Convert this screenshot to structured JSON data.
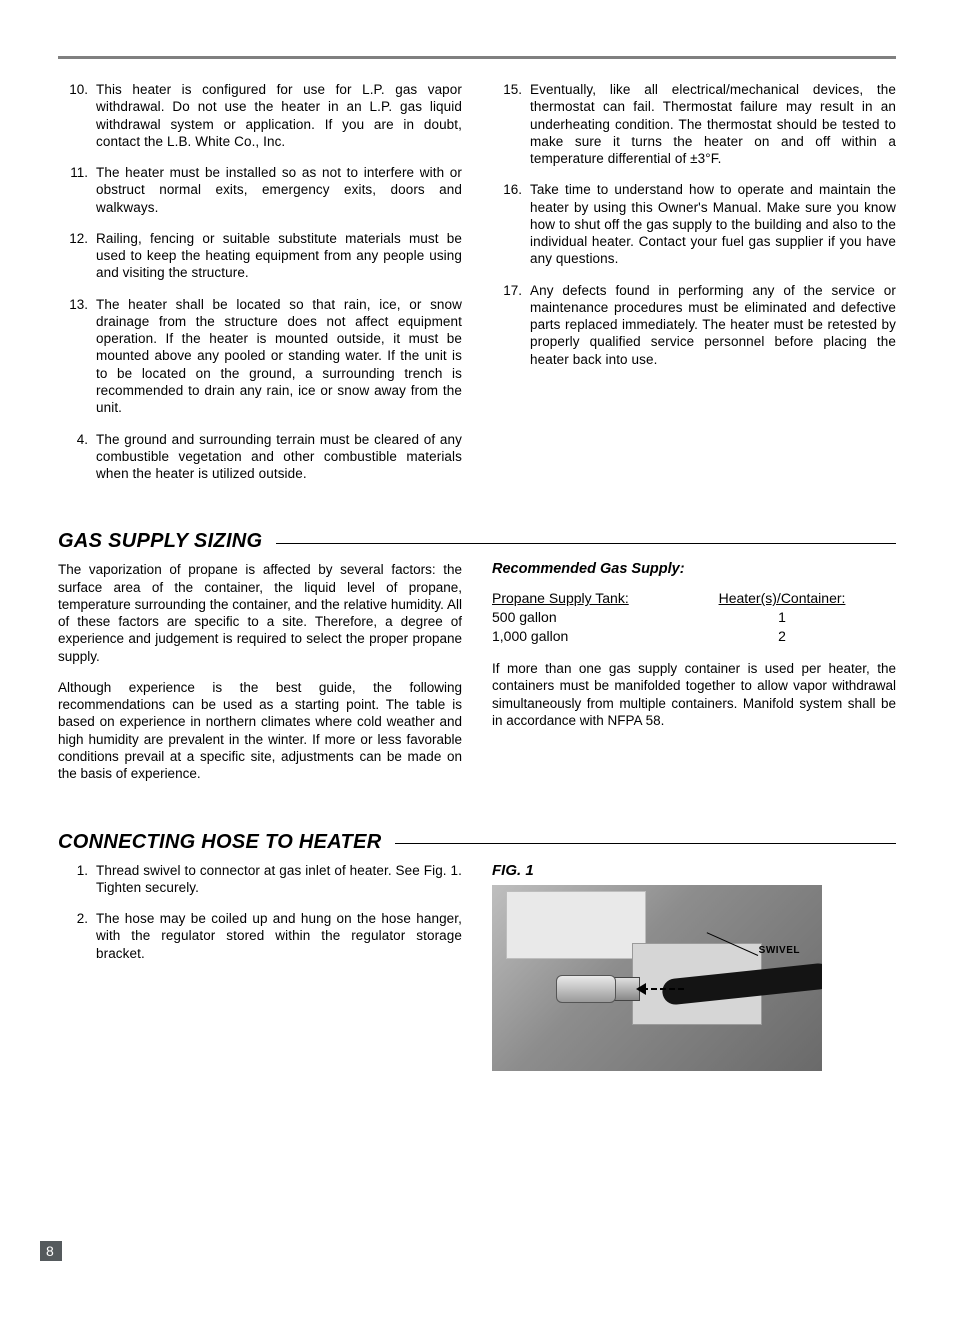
{
  "safety_left": [
    {
      "n": "10.",
      "t": "This heater is configured for use for L.P. gas vapor withdrawal.  Do not use the heater in an L.P. gas liquid withdrawal system or application.  If you are in doubt, contact the L.B. White Co., Inc."
    },
    {
      "n": "11.",
      "t": "The heater must be installed so as not to interfere with or obstruct normal exits, emergency exits, doors and walkways."
    },
    {
      "n": "12.",
      "t": "Railing, fencing or suitable substitute materials must be used to keep the heating equipment from any people using and visiting the structure."
    },
    {
      "n": "13.",
      "t": "The heater shall be located so that rain, ice, or snow drainage from the structure does not affect equipment operation.  If the heater is mounted outside, it must be mounted above any pooled or standing water.  If the unit is to be located on the ground, a surrounding trench is recommended to drain any rain, ice or snow away from the unit."
    },
    {
      "n": "4.",
      "t": "The ground and surrounding terrain must be cleared of any combustible vegetation and other combustible materials when the heater is utilized outside."
    }
  ],
  "safety_right": [
    {
      "n": "15.",
      "t": "Eventually, like all electrical/mechanical devices, the thermostat can fail.  Thermostat failure may result in an underheating condition.  The thermostat should be tested to make sure it turns the heater on and off within a temperature differential of ±3°F."
    },
    {
      "n": "16.",
      "t": "Take time to understand how to operate and maintain the heater by using this Owner's Manual.  Make sure you know how to shut off the gas supply to the building and also to the individual heater.  Contact your fuel gas supplier if you have any questions."
    },
    {
      "n": "17.",
      "t": "Any defects found in performing any of the service or maintenance procedures must be eliminated and defective parts replaced immediately.  The heater must be retested by properly qualified service personnel before placing the heater back into use."
    }
  ],
  "gas": {
    "heading": "GAS SUPPLY SIZING",
    "p1": "The vaporization of propane is affected by several factors: the surface area of the container, the liquid level of propane, temperature surrounding the container, and the relative humidity.  All of these factors are specific to a site.  Therefore, a degree of experience and judgement is required to select the proper propane supply.",
    "p2": "Although experience is the best guide, the following recommendations can be used as a starting point.  The table is based on experience in northern climates where cold weather and high humidity are prevalent in the winter.  If more or less favorable conditions prevail at a specific site, adjustments can be made on the basis of experience.",
    "rec_head": "Recommended Gas Supply:",
    "table": {
      "h1": "Propane Supply Tank:",
      "h2": "Heater(s)/Container:",
      "rows": [
        {
          "c1": "500 gallon",
          "c2": "1"
        },
        {
          "c1": "1,000 gallon",
          "c2": "2"
        }
      ]
    },
    "p3": "If more than one gas supply container is used per heater, the containers must be manifolded together to allow vapor withdrawal simultaneously from multiple containers.  Manifold system shall be in accordance with NFPA 58."
  },
  "hose": {
    "heading": "CONNECTING HOSE TO HEATER",
    "items": [
      {
        "n": "1.",
        "t": "Thread swivel to connector at gas inlet of heater.  See Fig. 1.  Tighten securely."
      },
      {
        "n": "2.",
        "t": "The hose may be coiled up and hung on the hose hanger, with the regulator stored within the regulator storage bracket."
      }
    ],
    "fig_label": "FIG. 1",
    "callout": "SWIVEL"
  },
  "page_number": "8"
}
